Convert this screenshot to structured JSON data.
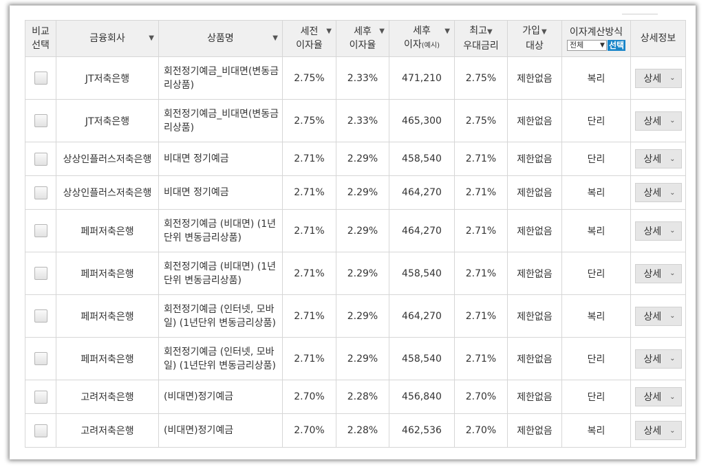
{
  "header": {
    "compare": "비교\n선택",
    "compare_l1": "비교",
    "compare_l2": "선택",
    "company": "금융회사",
    "product": "상품명",
    "pretax_l1": "세전",
    "pretax_l2": "이자율",
    "aftertax_l1": "세후",
    "aftertax_l2": "이자율",
    "interest_l1": "세후",
    "interest_l2": "이자",
    "interest_note": "(예시)",
    "max_l1": "최고",
    "max_l2": "우대금리",
    "join_l1": "가입",
    "join_l2": "대상",
    "calc_label": "이자계산방식",
    "calc_select_value": "전체",
    "calc_button": "선택",
    "detail": "상세정보",
    "sort_arrow": "▼"
  },
  "detail_button_label": "상세",
  "rows": [
    {
      "company": "JT저축은행",
      "product": "회전정기예금_비대면(변동금리상품)",
      "pretax": "2.75%",
      "aftertax": "2.33%",
      "interest": "471,210",
      "max_rate": "2.75%",
      "target": "제한없음",
      "calc": "복리"
    },
    {
      "company": "JT저축은행",
      "product": "회전정기예금_비대면(변동금리상품)",
      "pretax": "2.75%",
      "aftertax": "2.33%",
      "interest": "465,300",
      "max_rate": "2.75%",
      "target": "제한없음",
      "calc": "단리"
    },
    {
      "company": "상상인플러스저축은행",
      "product": "비대면 정기예금",
      "pretax": "2.71%",
      "aftertax": "2.29%",
      "interest": "458,540",
      "max_rate": "2.71%",
      "target": "제한없음",
      "calc": "단리"
    },
    {
      "company": "상상인플러스저축은행",
      "product": "비대면 정기예금",
      "pretax": "2.71%",
      "aftertax": "2.29%",
      "interest": "464,270",
      "max_rate": "2.71%",
      "target": "제한없음",
      "calc": "복리"
    },
    {
      "company": "페퍼저축은행",
      "product": "회전정기예금 (비대면) (1년단위 변동금리상품)",
      "pretax": "2.71%",
      "aftertax": "2.29%",
      "interest": "464,270",
      "max_rate": "2.71%",
      "target": "제한없음",
      "calc": "복리"
    },
    {
      "company": "페퍼저축은행",
      "product": "회전정기예금 (비대면) (1년단위 변동금리상품)",
      "pretax": "2.71%",
      "aftertax": "2.29%",
      "interest": "458,540",
      "max_rate": "2.71%",
      "target": "제한없음",
      "calc": "단리"
    },
    {
      "company": "페퍼저축은행",
      "product": "회전정기예금 (인터넷, 모바일) (1년단위 변동금리상품)",
      "pretax": "2.71%",
      "aftertax": "2.29%",
      "interest": "464,270",
      "max_rate": "2.71%",
      "target": "제한없음",
      "calc": "복리"
    },
    {
      "company": "페퍼저축은행",
      "product": "회전정기예금 (인터넷, 모바일) (1년단위 변동금리상품)",
      "pretax": "2.71%",
      "aftertax": "2.29%",
      "interest": "458,540",
      "max_rate": "2.71%",
      "target": "제한없음",
      "calc": "단리"
    },
    {
      "company": "고려저축은행",
      "product": "(비대면)정기예금",
      "pretax": "2.70%",
      "aftertax": "2.28%",
      "interest": "456,840",
      "max_rate": "2.70%",
      "target": "제한없음",
      "calc": "단리"
    },
    {
      "company": "고려저축은행",
      "product": "(비대면)정기예금",
      "pretax": "2.70%",
      "aftertax": "2.28%",
      "interest": "462,536",
      "max_rate": "2.70%",
      "target": "제한없음",
      "calc": "복리"
    }
  ]
}
